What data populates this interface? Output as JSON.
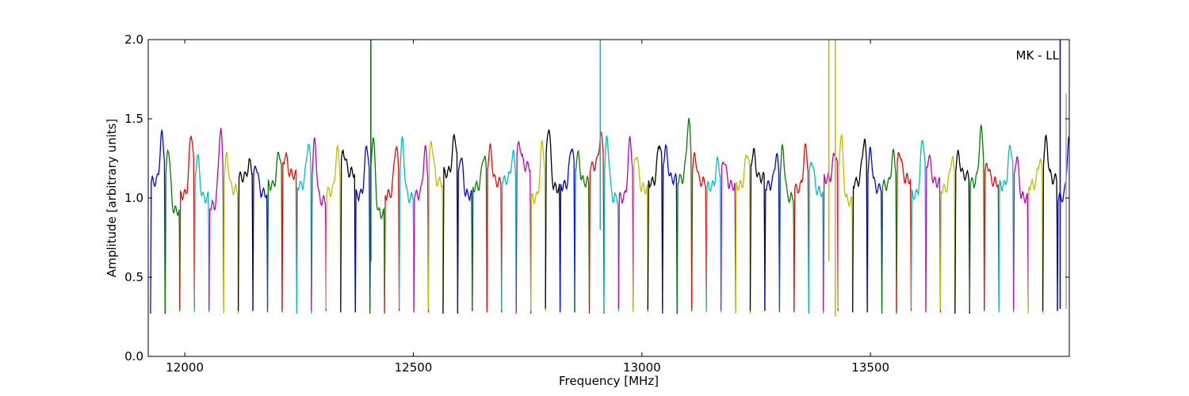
{
  "chart_data": {
    "type": "line",
    "title": "",
    "xlabel": "Frequency [MHz]",
    "ylabel": "Amplitude [arbitrary units]",
    "xlim": [
      11920,
      13935
    ],
    "ylim": [
      0.0,
      2.0
    ],
    "xticks": [
      12000,
      12500,
      13000,
      13500
    ],
    "yticks": [
      0.0,
      0.5,
      1.0,
      1.5,
      2.0
    ],
    "xtick_labels": [
      "12000",
      "12500",
      "13000",
      "13500"
    ],
    "ytick_labels": [
      "0.0",
      "0.5",
      "1.0",
      "1.5",
      "2.0"
    ],
    "grid": false,
    "annotation": "MK - LL",
    "channel_width_mhz": 32,
    "channel_colors": [
      "#0000ff",
      "#008000",
      "#ff0000",
      "#00bfbf",
      "#bf00bf",
      "#bfbf00",
      "#000000"
    ],
    "channels": [
      {
        "start": 11925,
        "peak": 1.4,
        "edge": 1.1,
        "color": "#0000ff"
      },
      {
        "start": 11957,
        "peak": 1.32,
        "edge": 0.92,
        "color": "#008000"
      },
      {
        "start": 11989,
        "peak": 1.41,
        "edge": 1.02,
        "color": "#ff0000"
      },
      {
        "start": 12021,
        "peak": 1.26,
        "edge": 1.0,
        "color": "#00bfbf"
      },
      {
        "start": 12053,
        "peak": 1.43,
        "edge": 0.95,
        "color": "#bf00bf"
      },
      {
        "start": 12085,
        "peak": 1.26,
        "edge": 1.05,
        "color": "#bfbf00"
      },
      {
        "start": 12117,
        "peak": 1.22,
        "edge": 1.13,
        "color": "#000000"
      },
      {
        "start": 12149,
        "peak": 1.21,
        "edge": 1.03,
        "color": "#0000ff"
      },
      {
        "start": 12181,
        "peak": 1.29,
        "edge": 1.08,
        "color": "#008000"
      },
      {
        "start": 12213,
        "peak": 1.27,
        "edge": 1.15,
        "color": "#ff0000"
      },
      {
        "start": 12245,
        "peak": 1.34,
        "edge": 1.08,
        "color": "#00bfbf"
      },
      {
        "start": 12277,
        "peak": 1.35,
        "edge": 0.98,
        "color": "#bf00bf"
      },
      {
        "start": 12309,
        "peak": 1.3,
        "edge": 1.04,
        "color": "#bfbf00"
      },
      {
        "start": 12341,
        "peak": 1.29,
        "edge": 1.16,
        "color": "#000000"
      },
      {
        "start": 12373,
        "peak": 1.33,
        "edge": 1.02,
        "color": "#0000ff"
      },
      {
        "start": 12405,
        "peak": 1.39,
        "edge": 0.9,
        "color": "#008000"
      },
      {
        "start": 12437,
        "peak": 1.33,
        "edge": 1.02,
        "color": "#ff0000"
      },
      {
        "start": 12469,
        "peak": 1.36,
        "edge": 1.0,
        "color": "#00bfbf"
      },
      {
        "start": 12501,
        "peak": 1.3,
        "edge": 1.02,
        "color": "#bf00bf"
      },
      {
        "start": 12533,
        "peak": 1.35,
        "edge": 1.1,
        "color": "#bfbf00"
      },
      {
        "start": 12565,
        "peak": 1.39,
        "edge": 1.16,
        "color": "#000000"
      },
      {
        "start": 12597,
        "peak": 1.27,
        "edge": 1.02,
        "color": "#0000ff"
      },
      {
        "start": 12629,
        "peak": 1.27,
        "edge": 1.07,
        "color": "#008000"
      },
      {
        "start": 12661,
        "peak": 1.31,
        "edge": 1.1,
        "color": "#ff0000"
      },
      {
        "start": 12693,
        "peak": 1.27,
        "edge": 1.11,
        "color": "#00bfbf"
      },
      {
        "start": 12725,
        "peak": 1.34,
        "edge": 1.2,
        "color": "#bf00bf"
      },
      {
        "start": 12757,
        "peak": 1.35,
        "edge": 1.0,
        "color": "#bfbf00"
      },
      {
        "start": 12789,
        "peak": 1.45,
        "edge": 1.06,
        "color": "#000000"
      },
      {
        "start": 12821,
        "peak": 1.33,
        "edge": 1.08,
        "color": "#0000ff"
      },
      {
        "start": 12853,
        "peak": 1.27,
        "edge": 1.1,
        "color": "#008000"
      },
      {
        "start": 12885,
        "peak": 1.39,
        "edge": 1.2,
        "color": "#ff0000"
      },
      {
        "start": 12917,
        "peak": 1.38,
        "edge": 1.0,
        "color": "#00bfbf"
      },
      {
        "start": 12949,
        "peak": 1.37,
        "edge": 1.0,
        "color": "#bf00bf"
      },
      {
        "start": 12981,
        "peak": 1.28,
        "edge": 1.06,
        "color": "#bfbf00"
      },
      {
        "start": 13013,
        "peak": 1.35,
        "edge": 1.1,
        "color": "#000000"
      },
      {
        "start": 13045,
        "peak": 1.31,
        "edge": 1.12,
        "color": "#0000ff"
      },
      {
        "start": 13077,
        "peak": 1.48,
        "edge": 1.12,
        "color": "#008000"
      },
      {
        "start": 13109,
        "peak": 1.26,
        "edge": 1.1,
        "color": "#ff0000"
      },
      {
        "start": 13141,
        "peak": 1.23,
        "edge": 1.07,
        "color": "#00bfbf"
      },
      {
        "start": 13173,
        "peak": 1.24,
        "edge": 1.08,
        "color": "#bf00bf"
      },
      {
        "start": 13205,
        "peak": 1.29,
        "edge": 1.08,
        "color": "#bfbf00"
      },
      {
        "start": 13237,
        "peak": 1.29,
        "edge": 1.13,
        "color": "#000000"
      },
      {
        "start": 13269,
        "peak": 1.26,
        "edge": 1.08,
        "color": "#0000ff"
      },
      {
        "start": 13301,
        "peak": 1.31,
        "edge": 1.0,
        "color": "#008000"
      },
      {
        "start": 13333,
        "peak": 1.32,
        "edge": 1.06,
        "color": "#ff0000"
      },
      {
        "start": 13365,
        "peak": 1.24,
        "edge": 1.04,
        "color": "#00bfbf"
      },
      {
        "start": 13397,
        "peak": 1.29,
        "edge": 1.12,
        "color": "#bf00bf"
      },
      {
        "start": 13429,
        "peak": 1.39,
        "edge": 0.98,
        "color": "#bfbf00"
      },
      {
        "start": 13461,
        "peak": 1.36,
        "edge": 1.1,
        "color": "#000000"
      },
      {
        "start": 13493,
        "peak": 1.29,
        "edge": 1.06,
        "color": "#0000ff"
      },
      {
        "start": 13525,
        "peak": 1.28,
        "edge": 1.08,
        "color": "#008000"
      },
      {
        "start": 13557,
        "peak": 1.29,
        "edge": 1.12,
        "color": "#ff0000"
      },
      {
        "start": 13589,
        "peak": 1.38,
        "edge": 1.02,
        "color": "#00bfbf"
      },
      {
        "start": 13621,
        "peak": 1.26,
        "edge": 1.1,
        "color": "#bf00bf"
      },
      {
        "start": 13653,
        "peak": 1.25,
        "edge": 1.06,
        "color": "#bfbf00"
      },
      {
        "start": 13685,
        "peak": 1.27,
        "edge": 1.14,
        "color": "#000000"
      },
      {
        "start": 13717,
        "peak": 1.43,
        "edge": 1.1,
        "color": "#008000"
      },
      {
        "start": 13749,
        "peak": 1.21,
        "edge": 1.1,
        "color": "#ff0000"
      },
      {
        "start": 13781,
        "peak": 1.33,
        "edge": 1.08,
        "color": "#00bfbf"
      },
      {
        "start": 13813,
        "peak": 1.26,
        "edge": 1.0,
        "color": "#bf00bf"
      },
      {
        "start": 13845,
        "peak": 1.24,
        "edge": 1.08,
        "color": "#bfbf00"
      },
      {
        "start": 13877,
        "peak": 1.37,
        "edge": 1.12,
        "color": "#000000"
      },
      {
        "start": 13909,
        "peak": 1.36,
        "edge": 1.0,
        "color": "#0000ff"
      }
    ],
    "spikes": [
      {
        "x": 12407,
        "ymin": 0.6,
        "ymax": 2.0,
        "color": "#008000"
      },
      {
        "x": 12909,
        "ymin": 0.8,
        "ymax": 2.0,
        "color": "#00bfbf"
      },
      {
        "x": 13409,
        "ymin": 0.6,
        "ymax": 2.0,
        "color": "#bfbf00"
      },
      {
        "x": 13423,
        "ymin": 0.25,
        "ymax": 2.0,
        "color": "#bfbf00"
      },
      {
        "x": 13915,
        "ymin": 0.3,
        "ymax": 2.0,
        "color": "#0000ff"
      },
      {
        "x": 13928,
        "ymin": 0.3,
        "ymax": 1.66,
        "color": "#aaaaaa"
      }
    ]
  }
}
